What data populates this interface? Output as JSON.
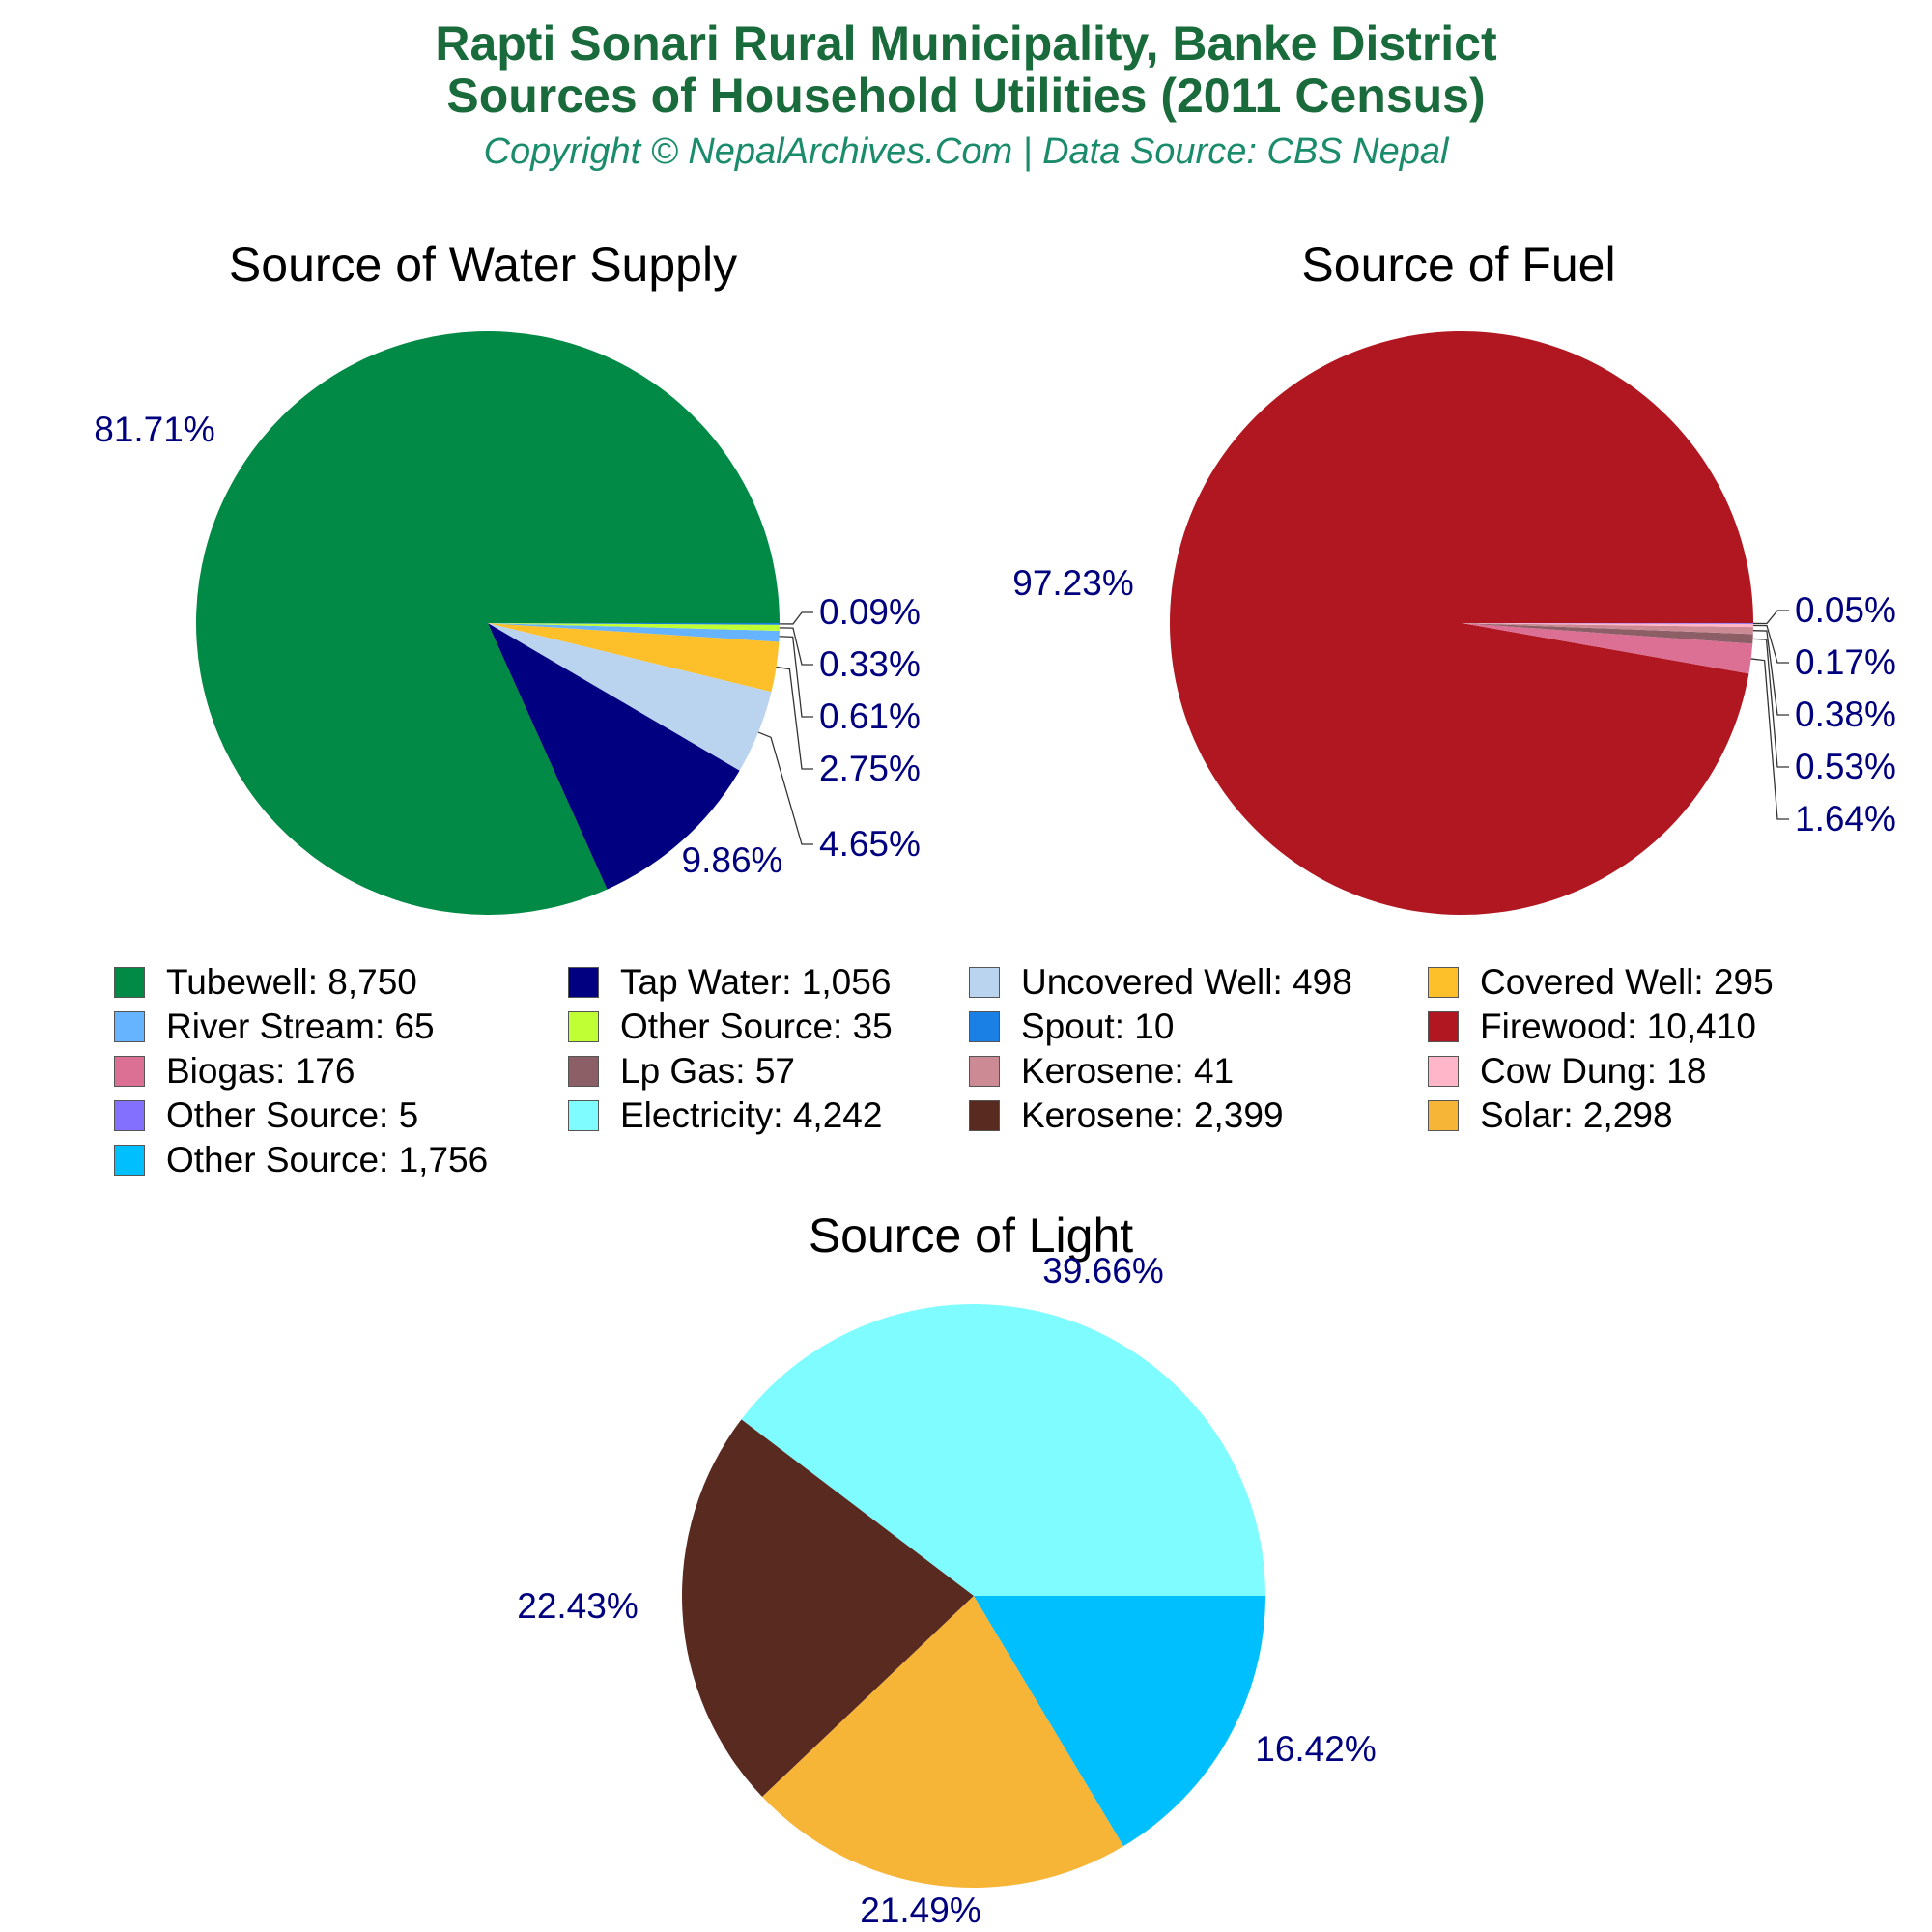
{
  "header": {
    "title_line1": "Rapti Sonari Rural Municipality, Banke District",
    "title_line2": "Sources of Household Utilities (2011 Census)",
    "subtitle": "Copyright © NepalArchives.Com | Data Source: CBS Nepal"
  },
  "chart_data": [
    {
      "type": "pie",
      "title": "Source of Water Supply",
      "slices": [
        {
          "label": "Tubewell",
          "value": 8750,
          "percent_label": "81.71%",
          "color": "#008a45"
        },
        {
          "label": "Tap Water",
          "value": 1056,
          "percent_label": "9.86%",
          "color": "#000080"
        },
        {
          "label": "Uncovered Well",
          "value": 498,
          "percent_label": "4.65%",
          "color": "#bad3ee"
        },
        {
          "label": "Covered Well",
          "value": 295,
          "percent_label": "2.75%",
          "color": "#fdc02a"
        },
        {
          "label": "River Stream",
          "value": 65,
          "percent_label": "0.61%",
          "color": "#66b3ff"
        },
        {
          "label": "Other Source",
          "value": 35,
          "percent_label": "0.33%",
          "color": "#c0ff33"
        },
        {
          "label": "Spout",
          "value": 10,
          "percent_label": "0.09%",
          "color": "#1a80e6"
        }
      ]
    },
    {
      "type": "pie",
      "title": "Source of Fuel",
      "slices": [
        {
          "label": "Firewood",
          "value": 10410,
          "percent_label": "97.23%",
          "color": "#b01720"
        },
        {
          "label": "Biogas",
          "value": 176,
          "percent_label": "1.64%",
          "color": "#db7094"
        },
        {
          "label": "Lp Gas",
          "value": 57,
          "percent_label": "0.53%",
          "color": "#8b5f65"
        },
        {
          "label": "Kerosene",
          "value": 41,
          "percent_label": "0.38%",
          "color": "#cc8a94"
        },
        {
          "label": "Cow Dung",
          "value": 18,
          "percent_label": "0.17%",
          "color": "#ffb6c8"
        },
        {
          "label": "Other Source",
          "value": 5,
          "percent_label": "0.05%",
          "color": "#8470ff"
        }
      ]
    },
    {
      "type": "pie",
      "title": "Source of Light",
      "slices": [
        {
          "label": "Electricity",
          "value": 4242,
          "percent_label": "39.66%",
          "color": "#7ffcff"
        },
        {
          "label": "Kerosene",
          "value": 2399,
          "percent_label": "22.43%",
          "color": "#582a20"
        },
        {
          "label": "Solar",
          "value": 2298,
          "percent_label": "21.49%",
          "color": "#f7b538"
        },
        {
          "label": "Other Source",
          "value": 1756,
          "percent_label": "16.42%",
          "color": "#00bfff"
        }
      ]
    }
  ],
  "legend": [
    {
      "text": "Tubewell: 8,750",
      "color": "#008a45"
    },
    {
      "text": "Tap Water: 1,056",
      "color": "#000080"
    },
    {
      "text": "Uncovered Well: 498",
      "color": "#bad3ee"
    },
    {
      "text": "Covered Well: 295",
      "color": "#fdc02a"
    },
    {
      "text": "River Stream: 65",
      "color": "#66b3ff"
    },
    {
      "text": "Other Source: 35",
      "color": "#c0ff33"
    },
    {
      "text": "Spout: 10",
      "color": "#1a80e6"
    },
    {
      "text": "Firewood: 10,410",
      "color": "#b01720"
    },
    {
      "text": "Biogas: 176",
      "color": "#db7094"
    },
    {
      "text": "Lp Gas: 57",
      "color": "#8b5f65"
    },
    {
      "text": "Kerosene: 41",
      "color": "#cc8a94"
    },
    {
      "text": "Cow Dung: 18",
      "color": "#ffb6c8"
    },
    {
      "text": "Other Source: 5",
      "color": "#8470ff"
    },
    {
      "text": "Electricity: 4,242",
      "color": "#7ffcff"
    },
    {
      "text": "Kerosene: 2,399",
      "color": "#582a20"
    },
    {
      "text": "Solar: 2,298",
      "color": "#f7b538"
    },
    {
      "text": "Other Source: 1,756",
      "color": "#00bfff"
    }
  ]
}
